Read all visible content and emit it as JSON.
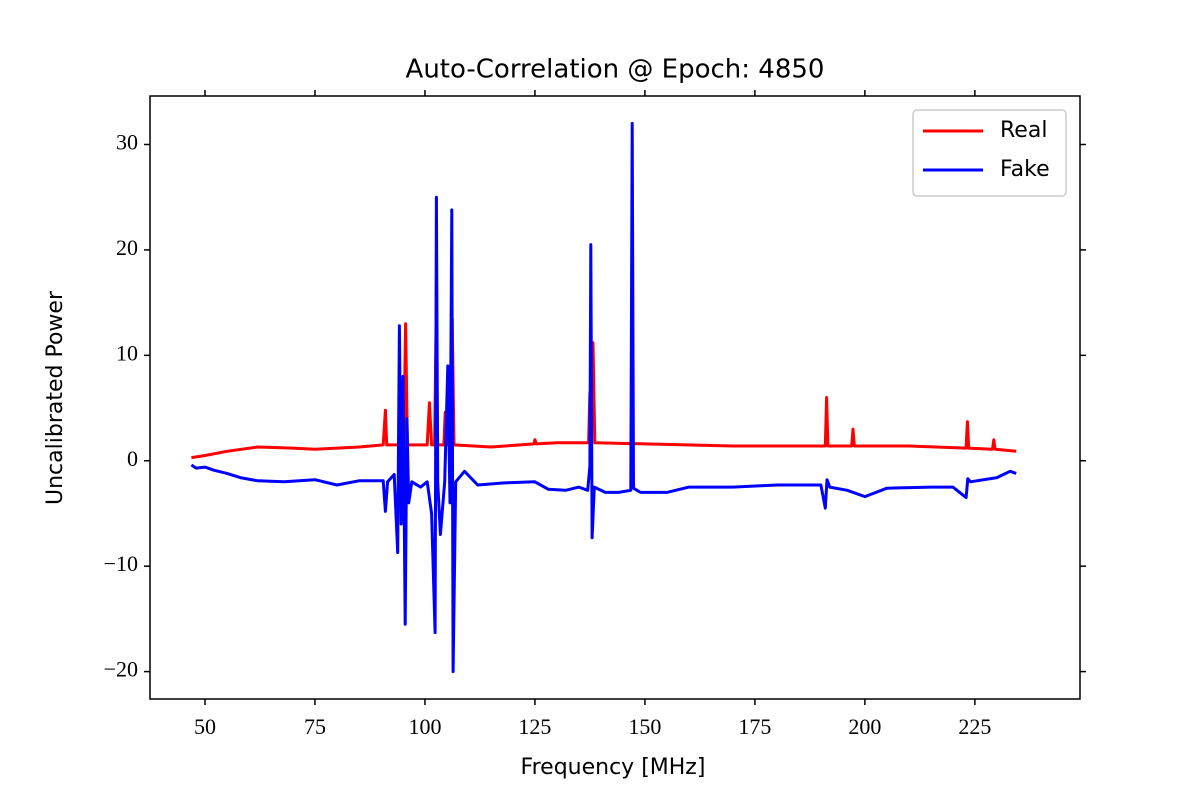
{
  "chart_data": {
    "type": "line",
    "title": "Auto-Correlation @ Epoch: 4850",
    "x_label": "Frequency [MHz]",
    "y_label": "Uncalibrated Power",
    "xlim": [
      37.5,
      248.9
    ],
    "ylim": [
      -22.6,
      34.6
    ],
    "xticks": [
      50,
      75,
      100,
      125,
      150,
      175,
      200,
      225
    ],
    "yticks": [
      {
        "value": -20,
        "label": "−20"
      },
      {
        "value": -10,
        "label": "−10"
      },
      0,
      10,
      20,
      30
    ],
    "legend": "upper right",
    "series": [
      {
        "name": "Real",
        "color": "#ff0000",
        "x": [
          46.9,
          50,
          55,
          62,
          70,
          75,
          85,
          90.5,
          91,
          91.3,
          94,
          94.5,
          95.2,
          95.6,
          96,
          100.5,
          101,
          101.5,
          102.2,
          102.5,
          102.9,
          104.3,
          104.6,
          105,
          105.8,
          106.2,
          106.6,
          115,
          124.8,
          125,
          125.3,
          130,
          137.2,
          137.5,
          137.8,
          138.2,
          138.6,
          150,
          170,
          185,
          191,
          191.3,
          191.6,
          197,
          197.3,
          197.6,
          210,
          223,
          223.3,
          223.6,
          229,
          229.3,
          229.6,
          234.4
        ],
        "values": [
          0.3,
          0.5,
          0.9,
          1.3,
          1.2,
          1.1,
          1.3,
          1.5,
          4.8,
          1.5,
          1.5,
          4.2,
          1.5,
          13,
          1.5,
          1.5,
          5.5,
          1.5,
          1.5,
          12.2,
          1.5,
          1.5,
          4.6,
          1.5,
          1.5,
          13.5,
          1.5,
          1.3,
          1.6,
          2,
          1.6,
          1.7,
          1.7,
          6.5,
          1.7,
          11.2,
          1.7,
          1.6,
          1.4,
          1.4,
          1.4,
          6,
          1.4,
          1.4,
          3,
          1.4,
          1.4,
          1.2,
          3.7,
          1.2,
          1.1,
          2,
          1.1,
          0.9
        ]
      },
      {
        "name": "Fake",
        "color": "#0000ff",
        "x": [
          46.9,
          48,
          50,
          52,
          55,
          58,
          62,
          68,
          75,
          80,
          85,
          90.5,
          91,
          91.5,
          93,
          93.8,
          94.2,
          94.6,
          95,
          95.5,
          95.9,
          96.3,
          97,
          99,
          100.5,
          101.5,
          102.3,
          102.6,
          102.9,
          103.5,
          104.5,
          105.2,
          105.7,
          106.1,
          106.4,
          107,
          109,
          112,
          118,
          125,
          128,
          132,
          135,
          137,
          137.5,
          137.7,
          138,
          138.5,
          141,
          144,
          146.8,
          147.1,
          147.4,
          149,
          155,
          160,
          170,
          180,
          190,
          191,
          191.4,
          192,
          196,
          200,
          205,
          215,
          220,
          223,
          223.4,
          224,
          230,
          233,
          234.4
        ],
        "values": [
          -0.4,
          -0.7,
          -0.6,
          -0.9,
          -1.2,
          -1.6,
          -1.9,
          -2,
          -1.8,
          -2.3,
          -1.9,
          -1.9,
          -4.8,
          -2,
          -1.3,
          -8.7,
          12.8,
          -6,
          8,
          -15.5,
          4,
          -4,
          -2,
          -2.5,
          -2,
          -5,
          -16.3,
          25,
          -2,
          -7,
          -2,
          9,
          -4,
          23.8,
          -20,
          -2,
          -1,
          -2.3,
          -2.1,
          -2,
          -2.7,
          -2.8,
          -2.5,
          -2.8,
          -0.5,
          20.5,
          -7.3,
          -2.5,
          -3,
          -3,
          -2.8,
          32,
          -2.6,
          -3,
          -3,
          -2.5,
          -2.5,
          -2.3,
          -2.3,
          -4.5,
          -1.8,
          -2.5,
          -2.8,
          -3.4,
          -2.6,
          -2.5,
          -2.5,
          -3.5,
          -1.7,
          -2,
          -1.6,
          -1,
          -1.2
        ]
      }
    ]
  }
}
